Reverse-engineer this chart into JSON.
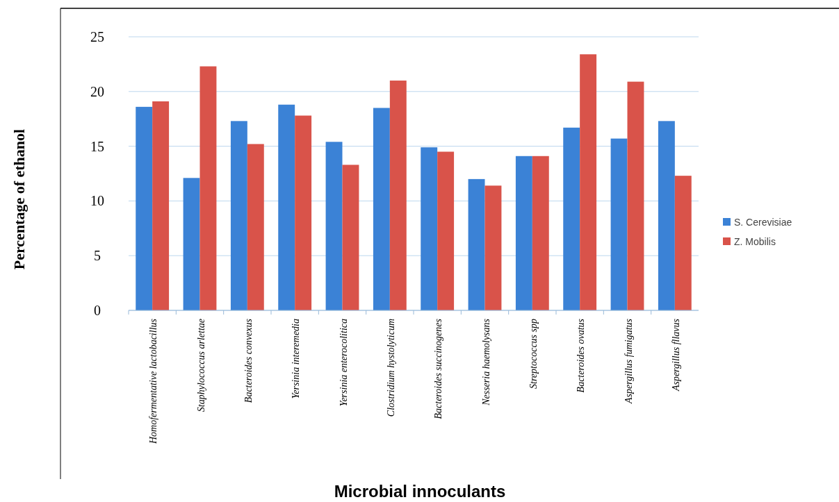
{
  "chart_data": {
    "type": "bar",
    "xlabel": "Microbial innoculants",
    "ylabel": "Percentage of ethanol",
    "categories": [
      "Homofermentative lactobacillus",
      "Staphylococcus arlettae",
      "Bacteroides convexus",
      "Yersinia interemedia",
      "Yersinia enterocolitica",
      "Clostridium hystolyticum",
      "Bacteroides succinogenes",
      "Nesseria haemolysans",
      "Streptococcus spp",
      "Bacteroides ovatus",
      "Aspergillus fumigatus",
      "Aspergillus fllavus"
    ],
    "series": [
      {
        "name": "S. Cerevisiae",
        "color": "#3b82d6",
        "values": [
          18.6,
          12.1,
          17.3,
          18.8,
          15.4,
          18.5,
          14.9,
          12.0,
          14.1,
          16.7,
          15.7,
          17.3
        ]
      },
      {
        "name": "Z. Mobilis",
        "color": "#d9534a",
        "values": [
          19.1,
          22.3,
          15.2,
          17.8,
          13.3,
          21.0,
          14.5,
          11.4,
          14.1,
          23.4,
          20.9,
          12.3
        ]
      }
    ],
    "ylim": [
      0,
      25
    ],
    "yticks": [
      0,
      5,
      10,
      15,
      20,
      25
    ],
    "grid": "y",
    "legend": "right"
  }
}
